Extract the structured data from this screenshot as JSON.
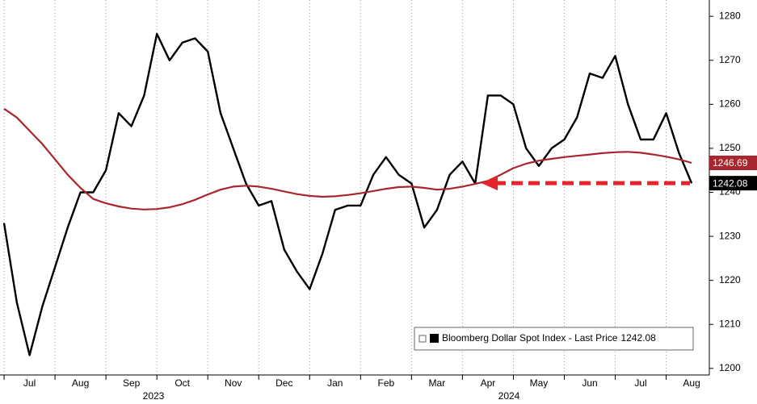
{
  "chart_data": {
    "type": "line",
    "x": [
      0,
      0.25,
      0.5,
      0.75,
      1,
      1.25,
      1.5,
      1.75,
      2,
      2.25,
      2.5,
      2.75,
      3,
      3.25,
      3.5,
      3.75,
      4,
      4.25,
      4.5,
      4.75,
      5,
      5.25,
      5.5,
      5.75,
      6,
      6.25,
      6.5,
      6.75,
      7,
      7.25,
      7.5,
      7.75,
      8,
      8.25,
      8.5,
      8.75,
      9,
      9.25,
      9.5,
      9.75,
      10,
      10.25,
      10.5,
      10.75,
      11,
      11.25,
      11.5,
      11.75,
      12,
      12.25,
      12.5,
      12.75,
      13,
      13.25,
      13.5
    ],
    "series": [
      {
        "name": "Bloomberg Dollar Spot Index - Last Price",
        "color": "#000000",
        "values": [
          1233,
          1215,
          1203,
          1214,
          1223,
          1232,
          1240,
          1240,
          1245,
          1258,
          1255,
          1262,
          1276,
          1270,
          1274,
          1275,
          1272,
          1258,
          1250,
          1242,
          1237,
          1238,
          1227,
          1222,
          1218,
          1226,
          1236,
          1237,
          1237,
          1244,
          1248,
          1244,
          1242,
          1232,
          1236,
          1244,
          1247,
          1242,
          1262,
          1262,
          1260,
          1250,
          1246,
          1250,
          1252,
          1257,
          1267,
          1266,
          1271,
          1260,
          1252,
          1252,
          1258,
          1249,
          1242.08
        ]
      },
      {
        "color": "#a8262e",
        "values": [
          1259,
          1257,
          1254,
          1251,
          1247.5,
          1244,
          1241,
          1238.5,
          1237.5,
          1236.8,
          1236.3,
          1236.1,
          1236.2,
          1236.6,
          1237.3,
          1238.3,
          1239.5,
          1240.6,
          1241.3,
          1241.5,
          1241.3,
          1240.8,
          1240.2,
          1239.6,
          1239.2,
          1239.0,
          1239.1,
          1239.4,
          1239.8,
          1240.3,
          1240.8,
          1241.2,
          1241.3,
          1241,
          1240.6,
          1240.8,
          1241.3,
          1241.9,
          1242.6,
          1244,
          1245.5,
          1246.5,
          1247.2,
          1247.6,
          1248,
          1248.3,
          1248.6,
          1248.9,
          1249.1,
          1249.2,
          1249,
          1248.6,
          1248.1,
          1247.5,
          1246.69
        ]
      }
    ],
    "xlim": [
      -0.08,
      13.8
    ],
    "xticks": [
      {
        "value": 0,
        "label": "Jul"
      },
      {
        "value": 1,
        "label": "Aug"
      },
      {
        "value": 2,
        "label": "Sep"
      },
      {
        "value": 3,
        "label": "Oct"
      },
      {
        "value": 4,
        "label": "Nov"
      },
      {
        "value": 5,
        "label": "Dec"
      },
      {
        "value": 6,
        "label": "Jan"
      },
      {
        "value": 7,
        "label": "Feb"
      },
      {
        "value": 8,
        "label": "Mar"
      },
      {
        "value": 9,
        "label": "Apr"
      },
      {
        "value": 10,
        "label": "May"
      },
      {
        "value": 11,
        "label": "Jun"
      },
      {
        "value": 12,
        "label": "Jul"
      },
      {
        "value": 13,
        "label": "Aug"
      }
    ],
    "year_labels": [
      "2023",
      "2024"
    ],
    "ylim": [
      1198.5,
      1283.7
    ],
    "yticks": [
      1200,
      1210,
      1220,
      1230,
      1240,
      1250,
      1260,
      1270,
      1280
    ],
    "grid": "x",
    "arrow_color": "#e8232a"
  }
}
